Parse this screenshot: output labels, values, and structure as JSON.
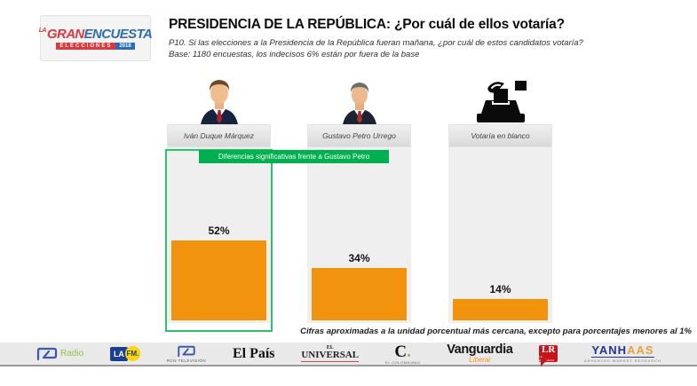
{
  "brand": {
    "la": "LA",
    "gran": "GRAN",
    "encuesta": "ENCUESTA",
    "elecciones": "ELECCIONES",
    "year": "2018"
  },
  "header": {
    "title": "PRESIDENCIA DE LA REPÚBLICA: ¿Por cuál de ellos votaría?",
    "question": "P10. Si las elecciones a la Presidencia de la República fueran mañana, ¿por cuál de estos candidatos votaría?",
    "base": "Base: 1180 encuestas, los indecisos 6% están por fuera de la base"
  },
  "chart_data": {
    "type": "bar",
    "categories": [
      "Iván Duque Márquez",
      "Gustavo Petro Urrego",
      "Votaría en blanco"
    ],
    "values": [
      52,
      34,
      14
    ],
    "value_labels": [
      "52%",
      "34%",
      "14%"
    ],
    "ylim": [
      0,
      100
    ],
    "bar_color": "#F2930D",
    "annotation": "Diferencias significativas frente a Gustavo Petro",
    "annotation_color": "#00B050",
    "annotation_target_column": 0,
    "legend_position": "none",
    "grid": false
  },
  "footnote": "Cifras aproximadas a la unidad porcentual más cercana, excepto para porcentajes menores al 1%",
  "footer": {
    "rcn_radio": {
      "label": "Radio"
    },
    "la_fm": {
      "la": "LA",
      "fm": "FM."
    },
    "rcn_tv": {
      "caption": "RCN TELEVISIÓN"
    },
    "el_pais": {
      "text": "El País"
    },
    "el_universal": {
      "el": "EL",
      "universal": "UNIVERSAL"
    },
    "el_colombiano": {
      "c": "C",
      "dot": ".",
      "caption": "EL COLOMBIANO"
    },
    "vanguardia": {
      "name": "Vanguardia",
      "sub": "Liberal"
    },
    "lr": {
      "text": "LR",
      "caption": "LA REPÚBLICA"
    },
    "yanhaas": {
      "part1": "YANH",
      "part2": "AAS",
      "caption": "ADVANCED MARKET RESEARCH"
    }
  }
}
